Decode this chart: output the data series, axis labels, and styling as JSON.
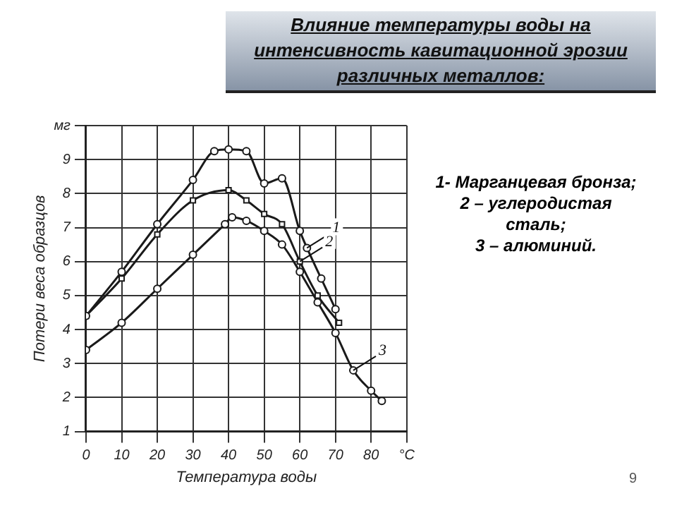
{
  "chart_data": {
    "type": "line",
    "title": "Влияние температуры воды на интенсивность кавитационной эрозии различных металлов:",
    "xlabel": "Температура воды",
    "ylabel": "Потери веса образцов",
    "xlim": [
      0,
      90
    ],
    "xticks": [
      0,
      10,
      20,
      30,
      40,
      50,
      60,
      70,
      80,
      {
        "value": 90,
        "label": "°C"
      }
    ],
    "ylim": [
      1,
      10
    ],
    "yticks": [
      1,
      2,
      3,
      4,
      5,
      6,
      7,
      8,
      9,
      {
        "value": 10,
        "label": "мг"
      }
    ],
    "grid": true,
    "legend": false,
    "line_style": "solid",
    "series": [
      {
        "name": "1",
        "color": "#1a1a1a",
        "marker": "circle",
        "x": [
          0,
          10,
          20,
          30,
          36,
          40,
          45,
          50,
          55,
          60,
          62,
          66,
          70
        ],
        "values": [
          4.4,
          5.7,
          7.1,
          8.4,
          9.25,
          9.3,
          9.25,
          8.3,
          8.45,
          6.9,
          6.4,
          5.5,
          4.6
        ]
      },
      {
        "name": "2",
        "color": "#1a1a1a",
        "marker": "square",
        "x": [
          0,
          10,
          20,
          30,
          40,
          45,
          50,
          55,
          60,
          65,
          71
        ],
        "values": [
          4.4,
          5.5,
          6.8,
          7.8,
          8.1,
          7.8,
          7.4,
          7.1,
          6.0,
          5.0,
          4.2
        ]
      },
      {
        "name": "3",
        "color": "#1a1a1a",
        "marker": "circle",
        "x": [
          0,
          10,
          20,
          30,
          39,
          41,
          45,
          50,
          55,
          60,
          65,
          70,
          75,
          80,
          83
        ],
        "values": [
          3.4,
          4.2,
          5.2,
          6.2,
          7.1,
          7.3,
          7.2,
          6.9,
          6.5,
          5.7,
          4.8,
          3.9,
          2.8,
          2.2,
          1.9
        ]
      }
    ],
    "annotations": [
      "1- Марганцевая бронза;\n2 – углеродистая\nсталь;\n3 – алюминий.",
      "9"
    ]
  }
}
